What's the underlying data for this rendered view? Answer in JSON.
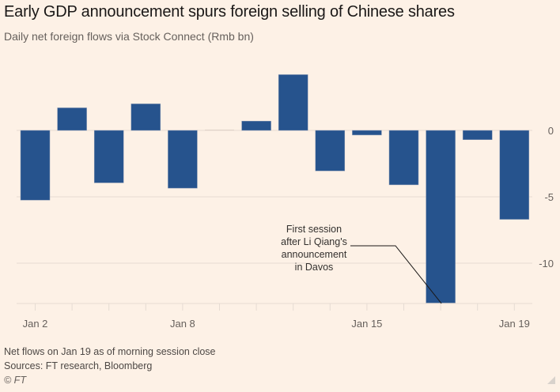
{
  "header": {
    "title": "Early GDP announcement spurs foreign selling of Chinese shares",
    "subtitle": "Daily net foreign flows via Stock Connect (Rmb bn)"
  },
  "footer": {
    "note": "Net flows on Jan 19 as of morning session close",
    "sources": "Sources: FT research, Bloomberg",
    "copyright": "© FT"
  },
  "colors": {
    "bar": "#26538d",
    "background": "#fdf1e6",
    "grid": "#e6dcd3"
  },
  "chart_data": {
    "type": "bar",
    "title": "Early GDP announcement spurs foreign selling of Chinese shares",
    "subtitle": "Daily net foreign flows via Stock Connect (Rmb bn)",
    "xlabel": "",
    "ylabel": "Rmb bn",
    "categories": [
      "Jan 2",
      "Jan 3",
      "Jan 4",
      "Jan 5",
      "Jan 8",
      "Jan 9",
      "Jan 10",
      "Jan 11",
      "Jan 12",
      "Jan 15",
      "Jan 16",
      "Jan 17",
      "Jan 18",
      "Jan 19"
    ],
    "values": [
      -5.25,
      1.7,
      -3.95,
      2.0,
      -4.35,
      0.05,
      0.7,
      4.2,
      -3.05,
      -0.35,
      -4.1,
      -13.0,
      -0.7,
      -6.7
    ],
    "ylim": [
      -13,
      4.5
    ],
    "yticks": [
      0,
      -5,
      -10
    ],
    "ytick_labels": [
      "0",
      "-5",
      "-10"
    ],
    "xtick_labels": [
      {
        "category": "Jan 2",
        "label": "Jan 2"
      },
      {
        "category": "Jan 8",
        "label": "Jan 8"
      },
      {
        "category": "Jan 15",
        "label": "Jan 15"
      },
      {
        "category": "Jan 19",
        "label": "Jan 19"
      }
    ],
    "y_axis_position": "right",
    "grid": true,
    "annotation": {
      "category": "Jan 17",
      "lines": [
        "First session",
        "after Li Qiang's",
        "announcement",
        "in Davos"
      ]
    }
  }
}
